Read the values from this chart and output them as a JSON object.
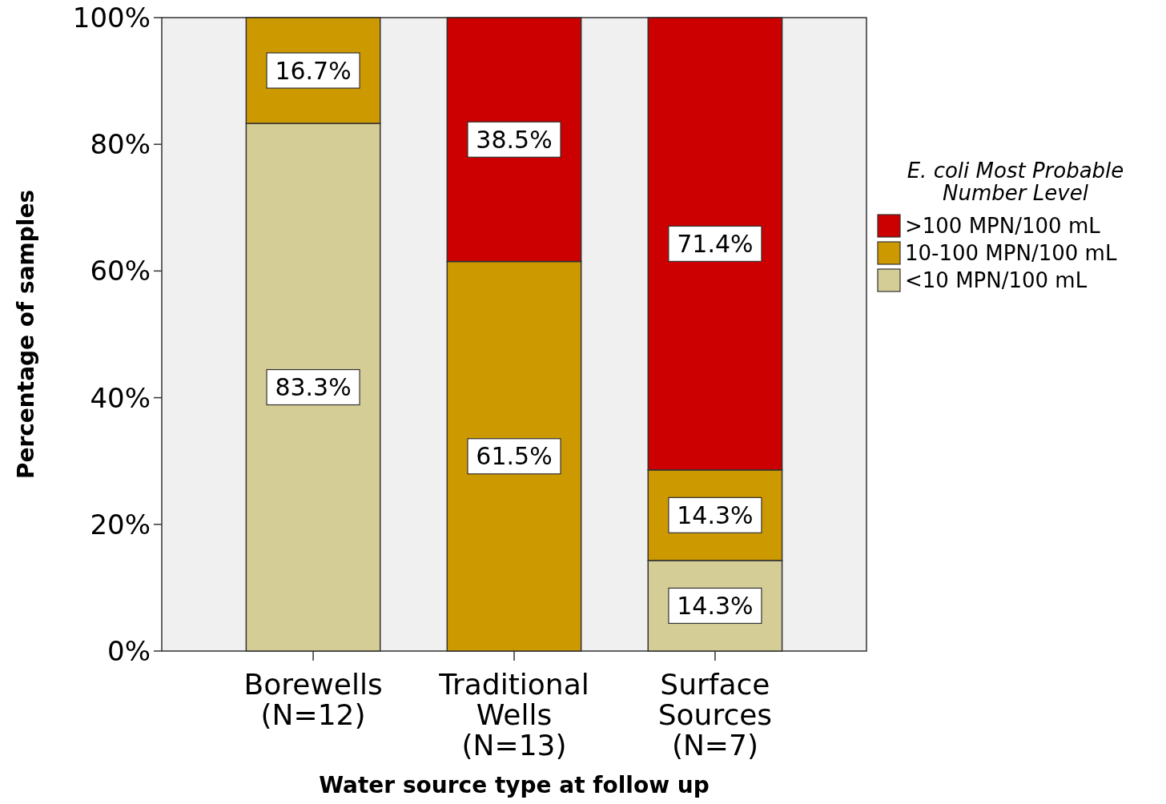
{
  "chart_data": {
    "type": "bar",
    "stacked": true,
    "xlabel": "Water source type at follow up",
    "ylabel": "Percentage of samples",
    "legend_title": "E. coli Most Probable Number Level",
    "legend": "right",
    "grid": false,
    "categories": [
      "Borewells\n(N=12)",
      "Traditional\nWells\n(N=13)",
      "Surface\nSources\n(N=7)"
    ],
    "ylim": [
      0,
      100
    ],
    "yticks": [
      {
        "value": 0,
        "label": "0%"
      },
      {
        "value": 20,
        "label": "20%"
      },
      {
        "value": 40,
        "label": "40%"
      },
      {
        "value": 60,
        "label": "60%"
      },
      {
        "value": 80,
        "label": "80%"
      },
      {
        "value": 100,
        "label": "100%"
      }
    ],
    "series": [
      {
        "name": "<10 MPN/100 mL",
        "color": "#d4cd96",
        "values": [
          83.3,
          null,
          14.3
        ],
        "value_labels": [
          "83.3%",
          null,
          "14.3%"
        ]
      },
      {
        "name": "10-100 MPN/100 mL",
        "color": "#cc9900",
        "values": [
          16.7,
          61.5,
          14.3
        ],
        "value_labels": [
          "16.7%",
          "61.5%",
          "14.3%"
        ]
      },
      {
        "name": ">100 MPN/100 mL",
        "color": "#cc0000",
        "values": [
          null,
          38.5,
          71.4
        ],
        "value_labels": [
          null,
          "38.5%",
          "71.4%"
        ]
      }
    ]
  }
}
